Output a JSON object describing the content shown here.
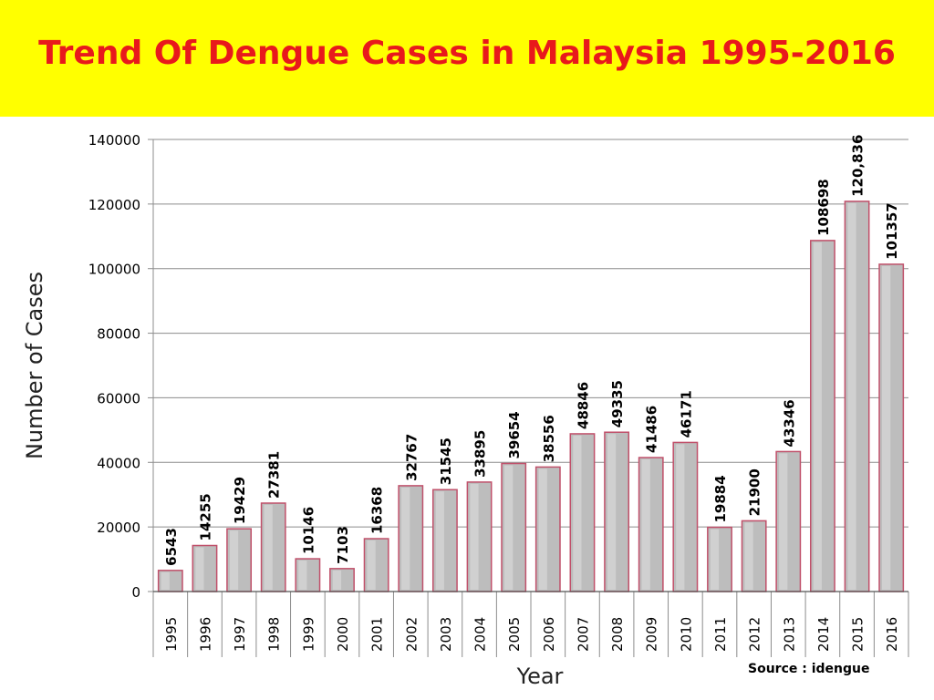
{
  "title": "Trend Of Dengue Cases in Malaysia 1995-2016",
  "source": "Source : idengue",
  "colors": {
    "banner": "#ffff00",
    "title": "#e8191c",
    "bar_fill": "#bdbdbd",
    "bar_stroke": "#c0506a",
    "grid": "#8c8c8c"
  },
  "chart_data": {
    "type": "bar",
    "xlabel": "Year",
    "ylabel": "Number of Cases",
    "ylim": [
      0,
      140000
    ],
    "yticks": [
      "0",
      "20000",
      "40000",
      "60000",
      "80000",
      "100000",
      "120000",
      "140000"
    ],
    "grid": true,
    "categories": [
      "1995",
      "1996",
      "1997",
      "1998",
      "1999",
      "2000",
      "2001",
      "2002",
      "2003",
      "2004",
      "2005",
      "2006",
      "2007",
      "2008",
      "2009",
      "2010",
      "2011",
      "2012",
      "2013",
      "2014",
      "2015",
      "2016"
    ],
    "values": [
      6543,
      14255,
      19429,
      27381,
      10146,
      7103,
      16368,
      32767,
      31545,
      33895,
      39654,
      38556,
      48846,
      49335,
      41486,
      46171,
      19884,
      21900,
      43346,
      108698,
      120836,
      101357
    ],
    "data_labels": [
      "6543",
      "14255",
      "19429",
      "27381",
      "10146",
      "7103",
      "16368",
      "32767",
      "31545",
      "33895",
      "39654",
      "38556",
      "48846",
      "49335",
      "41486",
      "46171",
      "19884",
      "21900",
      "43346",
      "108698",
      "120,836",
      "101357"
    ]
  }
}
